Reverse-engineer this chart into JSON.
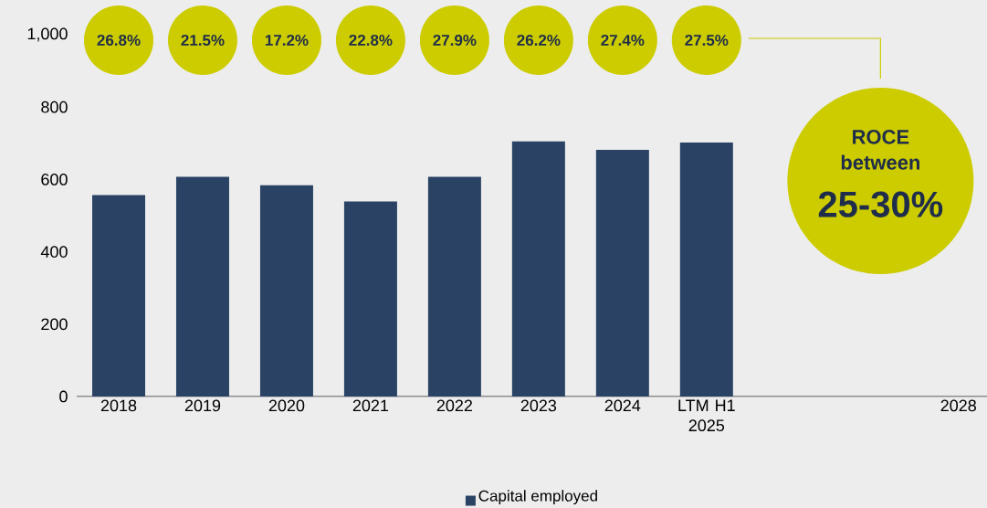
{
  "chart_data": {
    "type": "bar",
    "categories": [
      "2018",
      "2019",
      "2020",
      "2021",
      "2022",
      "2023",
      "2024",
      "LTM H1 2025",
      null,
      null,
      "2028"
    ],
    "series": [
      {
        "name": "Capital employed",
        "color": "#2a4364",
        "values": [
          557,
          607,
          584,
          539,
          607,
          705,
          682,
          702,
          null,
          null,
          null
        ]
      }
    ],
    "ylim": [
      0,
      1000
    ],
    "yticks": [
      0,
      200,
      400,
      600,
      800,
      {
        "value": 1000,
        "label": "1,000"
      }
    ],
    "legend": "bottom",
    "annotations": [
      "26.8%",
      "21.5%",
      "17.2%",
      "22.8%",
      "27.9%",
      "26.2%",
      "27.4%",
      "27.5%",
      "ROCE between",
      "25-30%"
    ]
  }
}
